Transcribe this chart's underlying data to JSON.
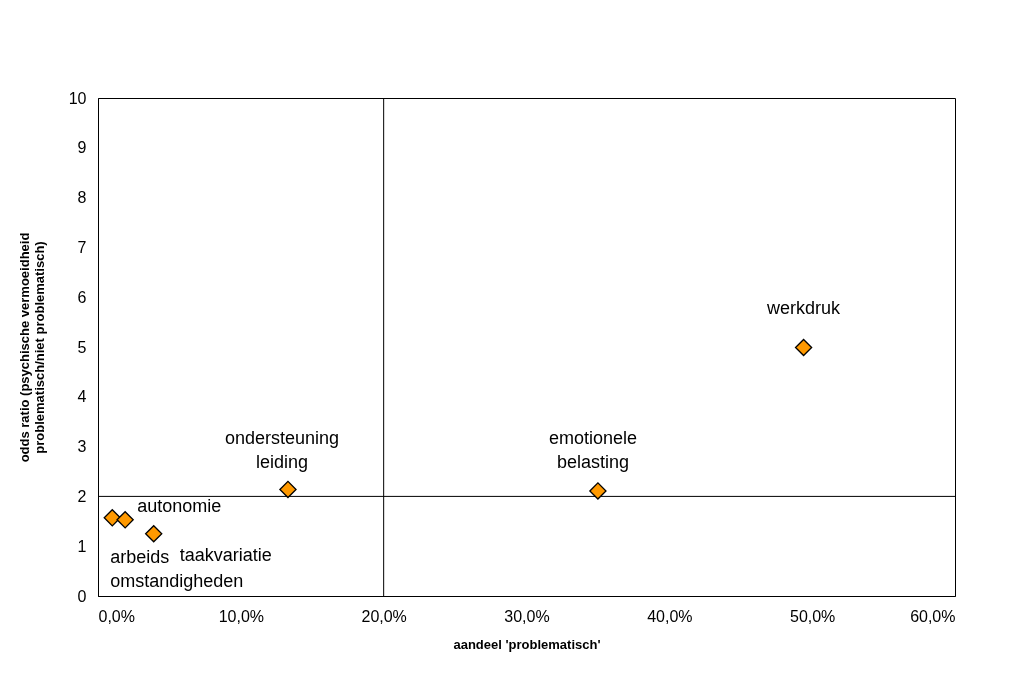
{
  "chart_data": {
    "type": "scatter",
    "xlabel": "aandeel 'problematisch'",
    "ylabel": "odds ratio (psychische vermoeidheid\nproblematisch/niet problematisch)",
    "x": [
      0.01,
      0.019,
      0.039,
      0.133,
      0.35,
      0.494
    ],
    "series": [
      {
        "color": "#ff9900",
        "values": [
          1.57,
          1.53,
          1.25,
          2.14,
          2.11,
          4.99
        ]
      }
    ],
    "marker": "diamond",
    "xlim": [
      0,
      0.6
    ],
    "xticks": [
      {
        "value": 0,
        "label": "0,0%"
      },
      {
        "value": 0.1,
        "label": "10,0%"
      },
      {
        "value": 0.2,
        "label": "20,0%"
      },
      {
        "value": 0.3,
        "label": "30,0%"
      },
      {
        "value": 0.4,
        "label": "40,0%"
      },
      {
        "value": 0.5,
        "label": "50,0%"
      },
      {
        "value": 0.6,
        "label": "60,0%"
      }
    ],
    "ylim": [
      0,
      10
    ],
    "yticks": [
      0,
      1,
      2,
      3,
      4,
      5,
      6,
      7,
      8,
      9,
      10
    ],
    "grid": false,
    "ref_lines": [
      {
        "axis": "x",
        "value": 0.2,
        "color": "#000000"
      },
      {
        "axis": "y",
        "value": 2,
        "color": "#000000"
      }
    ],
    "annotations": [
      {
        "text": "arbeids\nomstandigheden",
        "x": 0.01,
        "y": 1.57
      },
      {
        "text": "autonomie",
        "x": 0.019,
        "y": 1.53
      },
      {
        "text": "taakvariatie",
        "x": 0.039,
        "y": 1.25
      },
      {
        "text": "ondersteuning\nleiding",
        "x": 0.133,
        "y": 2.14
      },
      {
        "text": "emotionele\nbelasting",
        "x": 0.35,
        "y": 2.11
      },
      {
        "text": "werkdruk",
        "x": 0.494,
        "y": 4.99
      }
    ]
  }
}
